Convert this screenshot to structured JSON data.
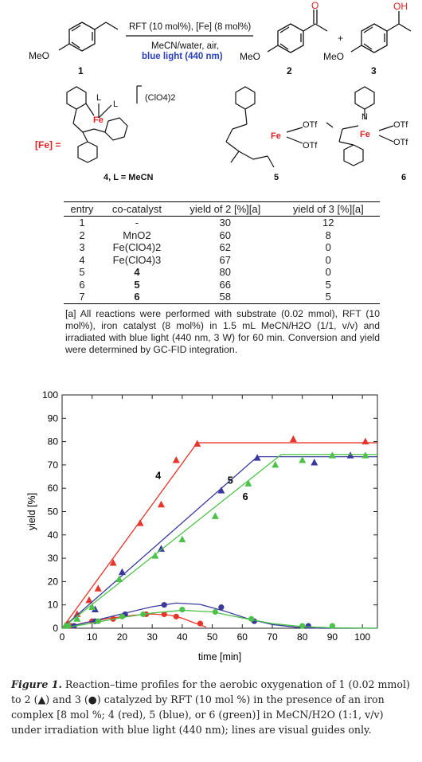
{
  "scheme": {
    "conditions_line1": "RFT (10 mol%), [Fe] (8 mol%)",
    "conditions_line2": "MeCN/water, air,",
    "conditions_line3": "blue light (440 nm)",
    "substrate_label": "1",
    "product2_label": "2",
    "product3_label": "3",
    "meo": "MeO",
    "plus": "+",
    "o_atom": "O",
    "oh_group": "OH"
  },
  "complexes": {
    "fe_label": "[Fe] =",
    "perchlorate": "(ClO4)2",
    "c4_caption": "4, L = MeCN",
    "c5_caption": "5",
    "c6_caption": "6",
    "fe": "Fe",
    "otf": "OTf",
    "l": "L",
    "n": "N"
  },
  "table": {
    "headers": [
      "entry",
      "co-catalyst",
      "yield of 2 [%][a]",
      "yield of 3 [%][a]"
    ],
    "rows": [
      [
        "1",
        "-",
        "30",
        "12"
      ],
      [
        "2",
        "MnO2",
        "60",
        "8"
      ],
      [
        "3",
        "Fe(ClO4)2",
        "62",
        "0"
      ],
      [
        "4",
        "Fe(ClO4)3",
        "67",
        "0"
      ],
      [
        "5",
        "4",
        "80",
        "0"
      ],
      [
        "6",
        "5",
        "66",
        "5"
      ],
      [
        "7",
        "6",
        "58",
        "5"
      ]
    ],
    "footnote": "[a] All reactions were performed with substrate (0.02 mmol), RFT (10 mol%), iron catalyst (8 mol%) in 1.5 mL MeCN/H2O (1/1, v/v) and irradiated with blue light (440 nm, 3 W) for 60 min. Conversion and yield were determined by GC-FID integration."
  },
  "chart_data": {
    "type": "scatter",
    "xlabel": "time [min]",
    "ylabel": "yield [%]",
    "xlim": [
      0,
      105
    ],
    "ylim": [
      0,
      100
    ],
    "xticks": [
      0,
      10,
      20,
      30,
      40,
      50,
      60,
      70,
      80,
      90,
      100
    ],
    "yticks": [
      0,
      10,
      20,
      30,
      40,
      50,
      60,
      70,
      80,
      90,
      100
    ],
    "grid": false,
    "annotations": [
      {
        "text": "4",
        "x": 32,
        "y": 64
      },
      {
        "text": "5",
        "x": 56,
        "y": 62
      },
      {
        "text": "6",
        "x": 61,
        "y": 55
      }
    ],
    "series": [
      {
        "color": "#e8352b",
        "marker": "triangle",
        "x": [
          2,
          5,
          9,
          12,
          17,
          26,
          33,
          38,
          45,
          77,
          101
        ],
        "y": [
          2,
          6,
          12,
          17,
          28,
          45,
          53,
          72,
          79,
          81,
          80
        ],
        "line_x": [
          0,
          45,
          105
        ],
        "line_y": [
          0,
          79.5,
          79.5
        ]
      },
      {
        "color": "#3a3a9e",
        "marker": "triangle",
        "x": [
          2,
          11,
          20,
          33,
          53,
          65,
          84,
          96
        ],
        "y": [
          1,
          8,
          24,
          34,
          59,
          73,
          71,
          74
        ],
        "line_x": [
          0,
          65,
          105
        ],
        "line_y": [
          0,
          73.5,
          73.5
        ]
      },
      {
        "color": "#4cc24a",
        "marker": "triangle",
        "x": [
          1,
          5,
          10,
          19,
          31,
          40,
          51,
          62,
          71,
          80,
          90,
          101
        ],
        "y": [
          1,
          4,
          9,
          21,
          31,
          38,
          48,
          62,
          70,
          72,
          74,
          74
        ],
        "line_x": [
          0,
          73,
          105
        ],
        "line_y": [
          0,
          74.5,
          74.5
        ]
      },
      {
        "color": "#e8352b",
        "marker": "circle",
        "x": [
          3,
          10,
          17,
          28,
          34,
          38,
          46
        ],
        "y": [
          1,
          3,
          4,
          6,
          6,
          5,
          2
        ],
        "line_x": [
          0,
          8,
          16,
          24,
          30,
          36,
          40,
          44,
          48
        ],
        "line_y": [
          0,
          2.5,
          4.3,
          5.6,
          6.1,
          5.6,
          4.3,
          2.3,
          0.5
        ]
      },
      {
        "color": "#3a3a9e",
        "marker": "circle",
        "x": [
          4,
          11,
          21,
          34,
          53,
          64,
          82
        ],
        "y": [
          1,
          3,
          6,
          10,
          9,
          3,
          1
        ],
        "line_x": [
          0,
          10,
          20,
          30,
          38,
          46,
          54,
          62,
          70,
          78,
          86,
          105
        ],
        "line_y": [
          0,
          3,
          6.2,
          9.2,
          10.8,
          10.2,
          7.4,
          4,
          1.6,
          0.4,
          0,
          0
        ]
      },
      {
        "color": "#4cc24a",
        "marker": "circle",
        "x": [
          2,
          12,
          20,
          27,
          40,
          51,
          63,
          80,
          90
        ],
        "y": [
          1,
          3,
          5,
          6,
          8,
          7,
          4,
          1,
          1
        ],
        "line_x": [
          0,
          10,
          20,
          30,
          40,
          50,
          60,
          70,
          80,
          90,
          105
        ],
        "line_y": [
          0,
          2.2,
          4.6,
          6.5,
          7.7,
          7,
          4.4,
          2,
          0.7,
          0.2,
          0
        ]
      }
    ]
  },
  "caption": {
    "label": "Figure 1.",
    "text": " Reaction–time profiles for the aerobic oxygenation of 1 (0.02 mmol) to 2 (▲) and 3 (●) catalyzed by RFT (10 mol %) in the presence of an iron complex [8 mol %; 4 (red), 5 (blue), or 6 (green)] in MeCN/H2O (1:1, v/v) under irradiation with blue light (440 nm); lines are visual guides only."
  }
}
